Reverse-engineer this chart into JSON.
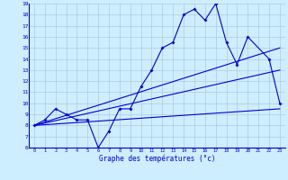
{
  "xlabel": "Graphe des températures (°c)",
  "hours": [
    0,
    1,
    2,
    3,
    4,
    5,
    6,
    7,
    8,
    9,
    10,
    11,
    12,
    13,
    14,
    15,
    16,
    17,
    18,
    19,
    20,
    21,
    22,
    23
  ],
  "temp_actual": [
    8.0,
    8.5,
    9.5,
    9.0,
    8.5,
    8.5,
    6.0,
    7.5,
    9.5,
    9.5,
    11.5,
    13.0,
    15.0,
    15.5,
    18.0,
    18.5,
    17.5,
    19.0,
    15.5,
    13.5,
    16.0,
    null,
    14.0,
    10.0
  ],
  "trend_lines": [
    [
      [
        0,
        23
      ],
      [
        8.0,
        15.0
      ]
    ],
    [
      [
        0,
        23
      ],
      [
        8.0,
        13.0
      ]
    ],
    [
      [
        0,
        23
      ],
      [
        8.0,
        9.5
      ]
    ]
  ],
  "line_color": "#0000cc",
  "bg_color": "#cceeff",
  "grid_color": "#aaccdd",
  "ylim": [
    6,
    19
  ],
  "xlim": [
    -0.5,
    23.5
  ],
  "yticks": [
    6,
    7,
    8,
    9,
    10,
    11,
    12,
    13,
    14,
    15,
    16,
    17,
    18,
    19
  ],
  "xticks": [
    0,
    1,
    2,
    3,
    4,
    5,
    6,
    7,
    8,
    9,
    10,
    11,
    12,
    13,
    14,
    15,
    16,
    17,
    18,
    19,
    20,
    21,
    22,
    23
  ]
}
